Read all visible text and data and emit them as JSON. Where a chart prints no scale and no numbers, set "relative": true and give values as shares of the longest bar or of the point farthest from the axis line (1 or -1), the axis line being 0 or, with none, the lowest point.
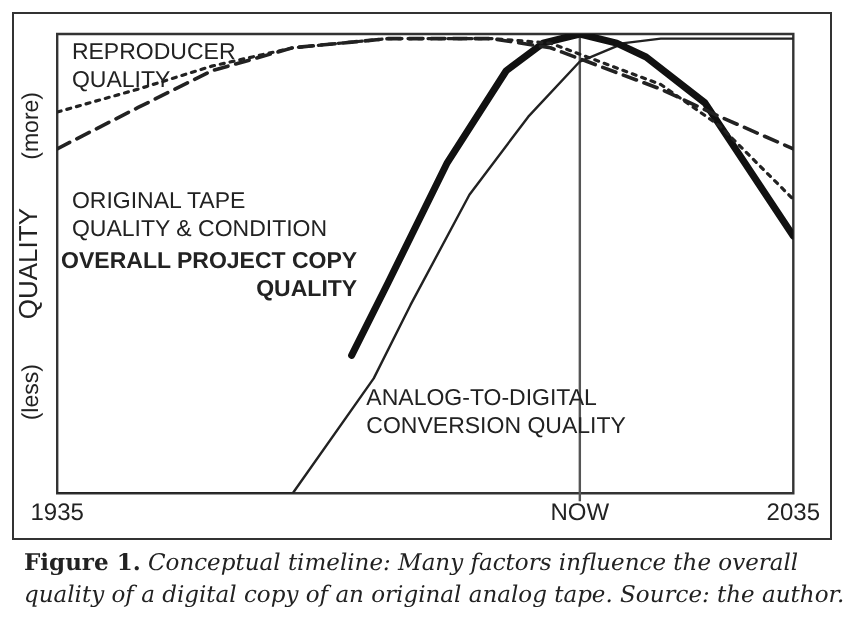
{
  "chart_data": {
    "type": "line",
    "relative": true,
    "ylabel": "QUALITY",
    "xlim": [
      1935,
      2035
    ],
    "xticks": [
      1935,
      {
        "value": 2006,
        "label": "NOW"
      },
      2035
    ],
    "grid": false,
    "legend": false,
    "marker": "none",
    "tick_labels": "x",
    "ref_lines": [
      {
        "axis": "x",
        "value": 2006,
        "color": "#555555"
      }
    ],
    "annotations": [
      "(more)",
      "(less)",
      "Figure 1.",
      "Conceptual timeline: Many factors influence the overall quality of a digital copy of an original analog tape. Source: the author."
    ],
    "series": [
      {
        "name": "REPRODUCER QUALITY",
        "color": "#222222",
        "line_style": "dotted",
        "x": [
          1935,
          1946,
          1956,
          1967,
          1980,
          1994,
          2002,
          2007,
          2017,
          2025,
          2035
        ],
        "values": [
          0.83,
          0.88,
          0.93,
          0.97,
          0.99,
          0.99,
          0.98,
          0.95,
          0.89,
          0.8,
          0.64
        ]
      },
      {
        "name": "ORIGINAL TAPE QUALITY & CONDITION",
        "color": "#222222",
        "line_style": "dashed",
        "x": [
          1935,
          1946,
          1956,
          1967,
          1980,
          1994,
          2002,
          2007,
          2017,
          2025,
          2035
        ],
        "values": [
          0.75,
          0.84,
          0.92,
          0.97,
          0.99,
          0.99,
          0.97,
          0.94,
          0.88,
          0.82,
          0.75
        ]
      },
      {
        "name": "OVERALL PROJECT COPY QUALITY",
        "color": "#111111",
        "line_style": "solid",
        "x": [
          1975,
          1980,
          1988,
          1996,
          2001,
          2006,
          2011,
          2015,
          2023,
          2035
        ],
        "values": [
          0.3,
          0.46,
          0.72,
          0.92,
          0.98,
          1,
          0.98,
          0.95,
          0.85,
          0.56
        ]
      },
      {
        "name": "ANALOG-TO-DIGITAL CONVERSION QUALITY",
        "color": "#222222",
        "line_style": "solid",
        "x": [
          1935,
          1967,
          1978,
          1983,
          1991,
          1999,
          2006,
          2012,
          2017,
          2035
        ],
        "values": [
          0,
          0,
          0.25,
          0.41,
          0.65,
          0.82,
          0.94,
          0.98,
          0.99,
          0.99
        ]
      }
    ]
  }
}
